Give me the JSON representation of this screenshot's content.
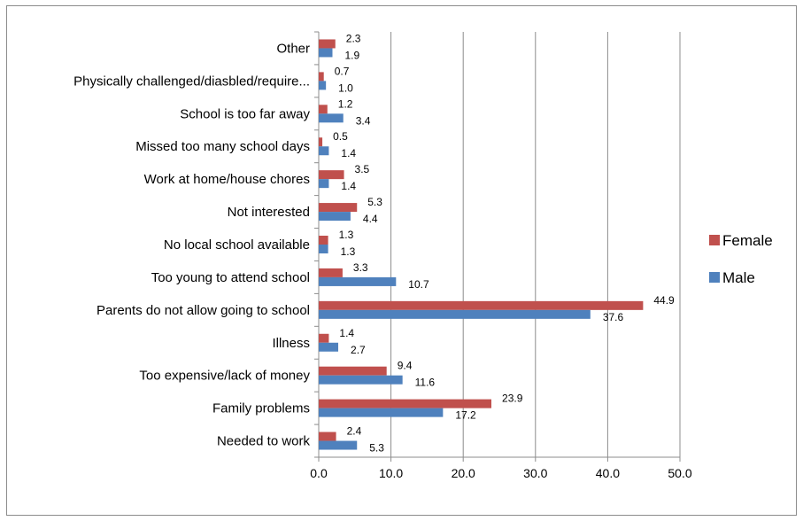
{
  "chart_data": {
    "type": "bar",
    "orientation": "horizontal",
    "categories": [
      "Needed to work",
      "Family problems",
      "Too expensive/lack of money",
      "Illness",
      "Parents do not allow going to school",
      "Too young to attend school",
      "No local school available",
      "Not interested",
      "Work at home/house chores",
      "Missed too many school days",
      "School is too far away",
      "Physically challenged/diasbled/require...",
      "Other"
    ],
    "series": [
      {
        "name": "Female",
        "color": "#C0504D",
        "values": [
          2.4,
          23.9,
          9.4,
          1.4,
          44.9,
          3.3,
          1.3,
          5.3,
          3.5,
          0.5,
          1.2,
          0.7,
          2.3
        ],
        "labels": [
          "2.4",
          "23.9",
          "9.4",
          "1.4",
          "44.9",
          "3.3",
          "1.3",
          "5.3",
          "3.5",
          "0.5",
          "1.2",
          "0.7",
          "2.3"
        ]
      },
      {
        "name": "Male",
        "color": "#4F81BD",
        "values": [
          5.3,
          17.2,
          11.6,
          2.7,
          37.6,
          10.7,
          1.3,
          4.4,
          1.4,
          1.4,
          3.4,
          1.0,
          1.9
        ],
        "labels": [
          "5.3",
          "17.2",
          "11.6",
          "2.7",
          "37.6",
          "10.7",
          "1.3",
          "4.4",
          "1.4",
          "1.4",
          "3.4",
          "1.0",
          "1.9"
        ]
      }
    ],
    "xlim": [
      0,
      50
    ],
    "xticks": [
      "0.0",
      "10.0",
      "20.0",
      "30.0",
      "40.0",
      "50.0"
    ],
    "grid": true,
    "legend_position": "right",
    "title": "",
    "xlabel": "",
    "ylabel": ""
  }
}
